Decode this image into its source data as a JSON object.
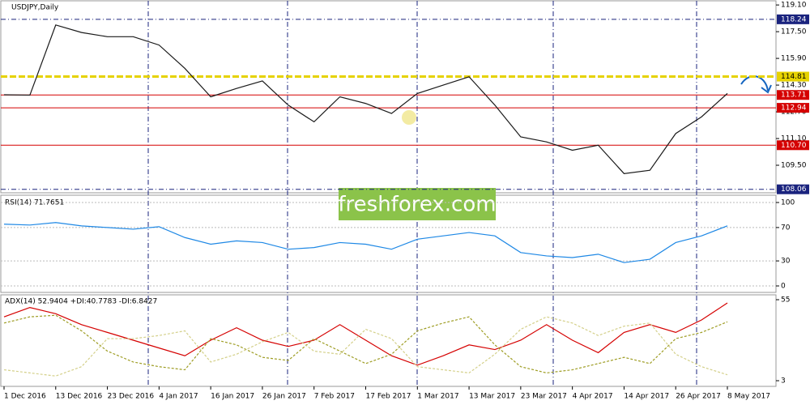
{
  "chart_data": [
    {
      "type": "line",
      "title": "USDJPY,Daily",
      "color": "#1a1a1a",
      "values": [
        113.72,
        113.7,
        117.9,
        117.45,
        117.2,
        117.2,
        116.7,
        115.3,
        113.6,
        114.1,
        114.55,
        113.1,
        112.1,
        113.6,
        113.2,
        112.6,
        113.8,
        114.3,
        114.8,
        113.1,
        111.2,
        110.9,
        110.4,
        110.7,
        109.0,
        109.2,
        111.4,
        112.4,
        113.8
      ],
      "ylim": [
        107.9,
        119.3
      ],
      "yticks": [
        {
          "value": 119.1,
          "label": "119.10"
        },
        {
          "value": 117.5,
          "label": "117.50"
        },
        {
          "value": 115.9,
          "label": "115.90"
        },
        {
          "value": 114.3,
          "label": "114.30"
        },
        {
          "value": 112.7,
          "label": "112.70"
        },
        {
          "value": 111.1,
          "label": "111.10"
        },
        {
          "value": 109.5,
          "label": "109.50"
        }
      ],
      "levels": [
        {
          "value": 118.24,
          "label": "118.24",
          "color": "#1a237e"
        },
        {
          "value": 114.81,
          "label": "114.81",
          "color": "#e6d200"
        },
        {
          "value": 113.71,
          "label": "113.71",
          "color": "#d50000"
        },
        {
          "value": 112.94,
          "label": "112.94",
          "color": "#d50000"
        },
        {
          "value": 110.7,
          "label": "110.70",
          "color": "#d50000"
        },
        {
          "value": 108.06,
          "label": "108.06",
          "color": "#1a237e"
        }
      ],
      "watermark": "freshforex.com"
    },
    {
      "type": "line",
      "title": "RSI(14) 71.7651",
      "color": "#1e88e5",
      "values": [
        74,
        73,
        76,
        72,
        70,
        68,
        71,
        58,
        50,
        54,
        52,
        44,
        46,
        52,
        50,
        44,
        56,
        60,
        64,
        60,
        40,
        36,
        34,
        38,
        28,
        32,
        52,
        60,
        72
      ],
      "ylim": [
        0,
        100
      ],
      "yticks": [
        0,
        30,
        70,
        100
      ]
    },
    {
      "type": "line",
      "title": "ADX(14) 52.9404 +DI:40.7783 -DI:6.8427",
      "categories": [
        "1 Dec 2016",
        null,
        "13 Dec 2016",
        null,
        "23 Dec 2016",
        null,
        "4 Jan 2017",
        null,
        "16 Jan 2017",
        null,
        "26 Jan 2017",
        null,
        "7 Feb 2017",
        null,
        "17 Feb 2017",
        null,
        "1 Mar 2017",
        null,
        "13 Mar 2017",
        null,
        "23 Mar 2017",
        null,
        "4 Apr 2017",
        null,
        "14 Apr 2017",
        null,
        "26 Apr 2017",
        null,
        "8 May 2017"
      ],
      "series": [
        {
          "color": "#d50000",
          "values": [
            44,
            50,
            46,
            39,
            34,
            29,
            24,
            19,
            29,
            37,
            29,
            25,
            29,
            39,
            29,
            19,
            13,
            19,
            26,
            23,
            29,
            39,
            29,
            21,
            34,
            39,
            34,
            42,
            52.9
          ]
        },
        {
          "color": "#9e9d24",
          "values": [
            40,
            44,
            45,
            35,
            22,
            15,
            12,
            10,
            30,
            26,
            18,
            16,
            30,
            22,
            14,
            20,
            35,
            40,
            44,
            26,
            12,
            8,
            10,
            14,
            18,
            14,
            30,
            34,
            40.8
          ]
        },
        {
          "color": "#d4d08a",
          "values": [
            10,
            8,
            6,
            12,
            30,
            30,
            32,
            35,
            15,
            20,
            28,
            34,
            22,
            20,
            36,
            30,
            12,
            10,
            8,
            20,
            36,
            44,
            40,
            32,
            38,
            40,
            20,
            12,
            6.8
          ]
        }
      ],
      "ylim": [
        3,
        55
      ],
      "yticks": [
        3,
        55
      ]
    }
  ]
}
